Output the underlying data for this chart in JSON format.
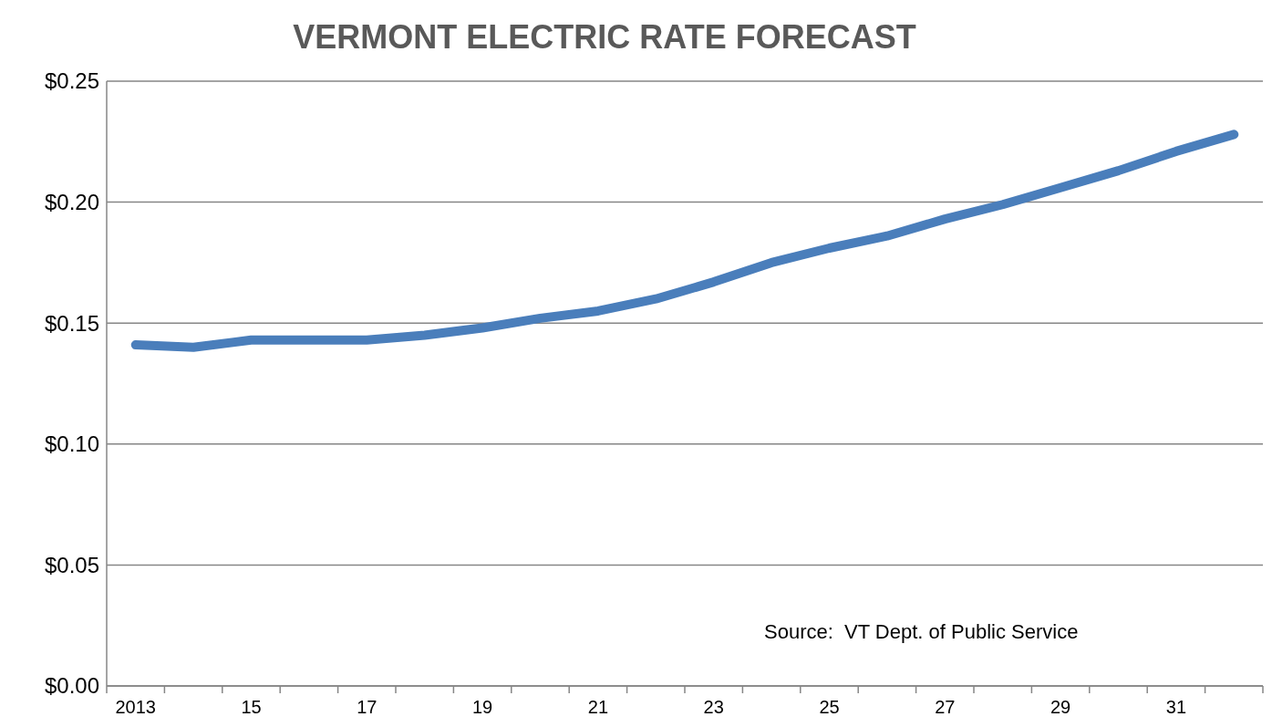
{
  "chart_data": {
    "type": "line",
    "title": "VERMONT ELECTRIC RATE FORECAST",
    "categories": [
      "2013",
      null,
      "15",
      null,
      "17",
      null,
      "19",
      null,
      "21",
      null,
      "23",
      null,
      "25",
      null,
      "27",
      null,
      "29",
      null,
      "31",
      null
    ],
    "series": [
      {
        "color": "#4a7ebb",
        "values": [
          0.141,
          0.14,
          0.143,
          0.143,
          0.143,
          0.145,
          0.148,
          0.152,
          0.155,
          0.16,
          0.167,
          0.175,
          0.181,
          0.186,
          0.193,
          0.199,
          0.206,
          0.213,
          0.221,
          0.228
        ]
      }
    ],
    "ylim": [
      0,
      0.25
    ],
    "yticks": [
      {
        "value": 0,
        "label": "$0.00"
      },
      {
        "value": 0.05,
        "label": "$0.05"
      },
      {
        "value": 0.1,
        "label": "$0.10"
      },
      {
        "value": 0.15,
        "label": "$0.15"
      },
      {
        "value": 0.2,
        "label": "$0.20"
      },
      {
        "value": 0.25,
        "label": "$0.25"
      }
    ],
    "grid": "y",
    "line_style": "solid",
    "annotations": [
      "Source:  VT Dept. of Public Service"
    ]
  }
}
